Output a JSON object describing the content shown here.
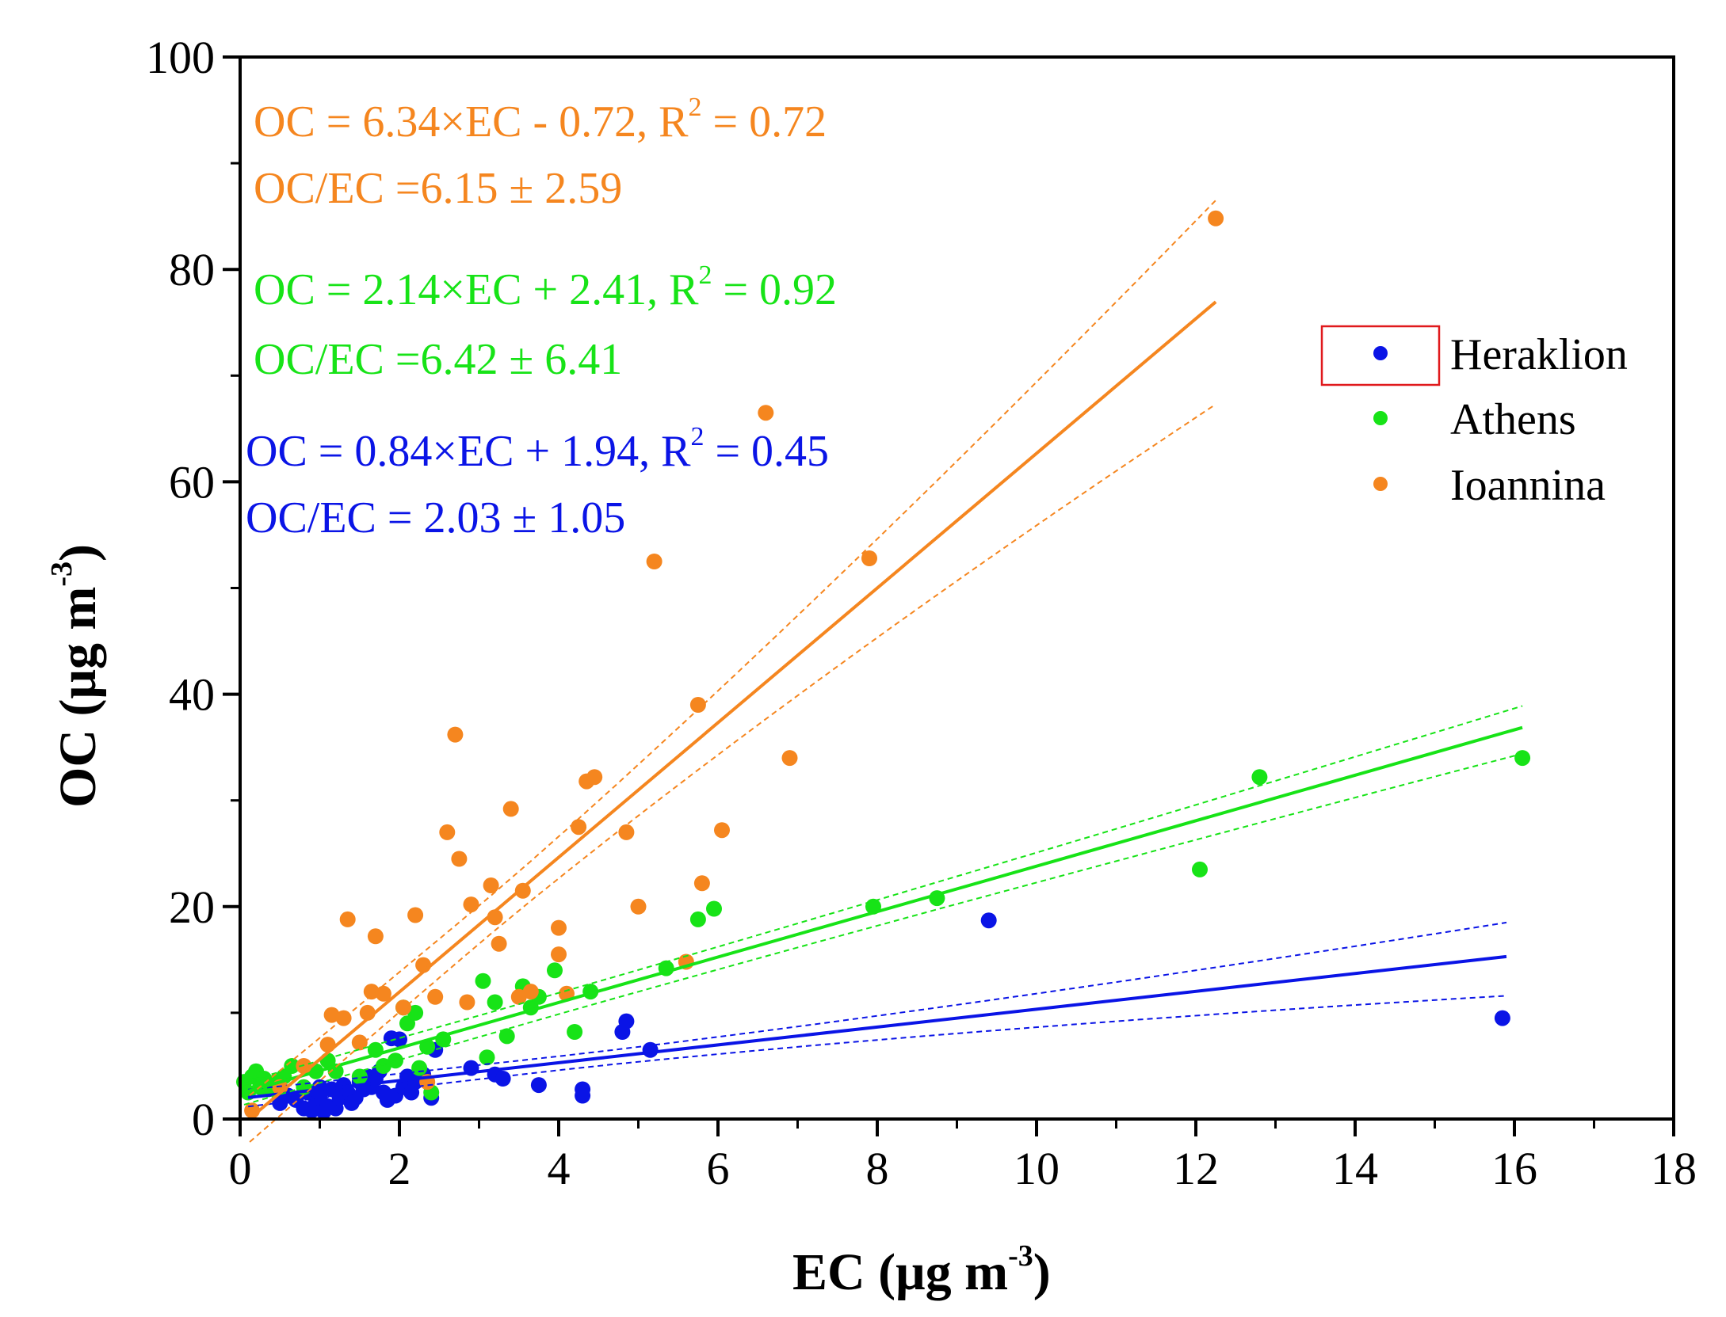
{
  "colors": {
    "Heraklion": "#0a14e6",
    "Athens": "#17e317",
    "Ioannina": "#f5861f",
    "axis": "#000000",
    "legend_box": "#e0191c"
  },
  "chart_data": {
    "type": "scatter",
    "title": "",
    "xlabel": "EC (μg m",
    "xlabel_sup": "-3",
    "xlabel_close": ")",
    "ylabel": "OC (μg m",
    "ylabel_sup": "-3",
    "ylabel_close": ")",
    "xlim": [
      0,
      18
    ],
    "ylim": [
      0,
      100
    ],
    "x_ticks": [
      0,
      2,
      4,
      6,
      8,
      10,
      12,
      14,
      16,
      18
    ],
    "y_ticks": [
      0,
      20,
      40,
      60,
      80,
      100
    ],
    "x_tick_labels": [
      "0",
      "2",
      "4",
      "6",
      "8",
      "10",
      "12",
      "14",
      "16",
      "18"
    ],
    "y_tick_labels": [
      "0",
      "20",
      "40",
      "60",
      "80",
      "100"
    ],
    "legend_position": "right",
    "series": [
      {
        "name": "Heraklion",
        "color": "#0a14e6",
        "fit": {
          "slope": 0.84,
          "intercept": 1.94,
          "x_range": [
            0.1,
            15.9
          ],
          "ci_upper_end": 18.5,
          "ci_lower_end": 11.6,
          "ci_at_start": 0.7
        },
        "annotation": {
          "line1": "OC = 0.84×EC + 1.94, R",
          "line1_sup": "2",
          "line1_end": " = 0.45",
          "line2": "OC/EC = 2.03 ± 1.05"
        },
        "points": [
          [
            0.5,
            1.5
          ],
          [
            0.6,
            2.2
          ],
          [
            0.7,
            1.8
          ],
          [
            0.8,
            1.0
          ],
          [
            0.85,
            2.5
          ],
          [
            0.9,
            0.8
          ],
          [
            0.95,
            1.5
          ],
          [
            1.0,
            3.0
          ],
          [
            1.0,
            2.0
          ],
          [
            1.05,
            0.7
          ],
          [
            1.1,
            1.2
          ],
          [
            1.15,
            2.8
          ],
          [
            1.2,
            1.0
          ],
          [
            1.25,
            2.0
          ],
          [
            1.3,
            3.2
          ],
          [
            1.35,
            2.5
          ],
          [
            1.4,
            1.5
          ],
          [
            1.45,
            2.0
          ],
          [
            1.5,
            3.5
          ],
          [
            1.55,
            2.8
          ],
          [
            1.6,
            4.0
          ],
          [
            1.65,
            3.0
          ],
          [
            1.7,
            3.8
          ],
          [
            1.75,
            4.5
          ],
          [
            1.8,
            2.5
          ],
          [
            1.85,
            1.8
          ],
          [
            1.9,
            7.6
          ],
          [
            1.95,
            2.2
          ],
          [
            2.0,
            7.5
          ],
          [
            2.05,
            3.0
          ],
          [
            2.1,
            4.0
          ],
          [
            2.15,
            2.5
          ],
          [
            2.2,
            3.5
          ],
          [
            2.3,
            4.2
          ],
          [
            2.4,
            2.0
          ],
          [
            2.45,
            6.5
          ],
          [
            2.9,
            4.8
          ],
          [
            3.2,
            4.2
          ],
          [
            3.3,
            3.8
          ],
          [
            3.75,
            3.2
          ],
          [
            4.3,
            2.8
          ],
          [
            4.3,
            2.2
          ],
          [
            4.8,
            8.2
          ],
          [
            4.85,
            9.2
          ],
          [
            5.15,
            6.5
          ],
          [
            9.4,
            18.7
          ],
          [
            15.85,
            9.5
          ]
        ]
      },
      {
        "name": "Athens",
        "color": "#17e317",
        "fit": {
          "slope": 2.14,
          "intercept": 2.41,
          "x_range": [
            0.05,
            16.1
          ],
          "ci_upper_end": 38.9,
          "ci_lower_end": 34.4,
          "ci_at_start": 1.1
        },
        "annotation": {
          "line1": "OC = 2.14×EC + 2.41, R",
          "line1_sup": "2",
          "line1_end": " = 0.92",
          "line2": "OC/EC =6.42 ± 6.41"
        },
        "points": [
          [
            0.05,
            3.5
          ],
          [
            0.1,
            2.5
          ],
          [
            0.15,
            4.0
          ],
          [
            0.2,
            4.5
          ],
          [
            0.25,
            3.0
          ],
          [
            0.3,
            3.8
          ],
          [
            0.35,
            2.8
          ],
          [
            0.45,
            3.5
          ],
          [
            0.55,
            4.0
          ],
          [
            0.65,
            5.0
          ],
          [
            0.8,
            3.0
          ],
          [
            0.95,
            4.5
          ],
          [
            1.1,
            5.5
          ],
          [
            1.2,
            4.5
          ],
          [
            1.5,
            4.0
          ],
          [
            1.7,
            6.5
          ],
          [
            1.8,
            5.0
          ],
          [
            1.95,
            5.5
          ],
          [
            2.05,
            10.5
          ],
          [
            2.1,
            9.0
          ],
          [
            2.2,
            10.0
          ],
          [
            2.25,
            4.8
          ],
          [
            2.35,
            6.8
          ],
          [
            2.4,
            2.5
          ],
          [
            2.55,
            7.5
          ],
          [
            3.05,
            13.0
          ],
          [
            3.1,
            5.8
          ],
          [
            3.2,
            11.0
          ],
          [
            3.35,
            7.8
          ],
          [
            3.55,
            12.5
          ],
          [
            3.65,
            10.5
          ],
          [
            3.75,
            11.5
          ],
          [
            3.95,
            14.0
          ],
          [
            4.2,
            8.2
          ],
          [
            4.4,
            12.0
          ],
          [
            5.35,
            14.2
          ],
          [
            5.75,
            18.8
          ],
          [
            5.95,
            19.8
          ],
          [
            7.95,
            20.0
          ],
          [
            8.75,
            20.8
          ],
          [
            12.05,
            23.5
          ],
          [
            12.8,
            32.2
          ],
          [
            16.1,
            34.0
          ]
        ]
      },
      {
        "name": "Ioannina",
        "color": "#f5861f",
        "fit": {
          "slope": 6.34,
          "intercept": -0.72,
          "x_range": [
            0.12,
            12.25
          ],
          "ci_upper_end": 86.5,
          "ci_lower_end": 67.3,
          "ci_at_start": 1.8
        },
        "annotation": {
          "line1": "OC = 6.34×EC - 0.72, R",
          "line1_sup": "2",
          "line1_end": " = 0.72",
          "line2": "OC/EC =6.15 ± 2.59"
        },
        "points": [
          [
            0.15,
            0.8
          ],
          [
            0.5,
            3.0
          ],
          [
            0.8,
            5.0
          ],
          [
            1.1,
            7.0
          ],
          [
            1.15,
            9.8
          ],
          [
            1.3,
            9.5
          ],
          [
            1.35,
            18.8
          ],
          [
            1.5,
            7.2
          ],
          [
            1.6,
            10.0
          ],
          [
            1.65,
            12.0
          ],
          [
            1.7,
            17.2
          ],
          [
            1.8,
            11.8
          ],
          [
            2.05,
            10.5
          ],
          [
            2.2,
            19.2
          ],
          [
            2.3,
            14.5
          ],
          [
            2.35,
            3.5
          ],
          [
            2.45,
            11.5
          ],
          [
            2.6,
            27.0
          ],
          [
            2.7,
            36.2
          ],
          [
            2.75,
            24.5
          ],
          [
            2.85,
            11.0
          ],
          [
            2.9,
            20.2
          ],
          [
            3.15,
            22.0
          ],
          [
            3.2,
            19.0
          ],
          [
            3.25,
            16.5
          ],
          [
            3.4,
            29.2
          ],
          [
            3.5,
            11.5
          ],
          [
            3.55,
            21.5
          ],
          [
            3.65,
            12.0
          ],
          [
            4.0,
            15.5
          ],
          [
            4.0,
            18.0
          ],
          [
            4.1,
            11.8
          ],
          [
            4.25,
            27.5
          ],
          [
            4.35,
            31.8
          ],
          [
            4.45,
            32.2
          ],
          [
            4.85,
            27.0
          ],
          [
            5.0,
            20.0
          ],
          [
            5.2,
            52.5
          ],
          [
            5.6,
            14.8
          ],
          [
            5.75,
            39.0
          ],
          [
            5.8,
            22.2
          ],
          [
            6.05,
            27.2
          ],
          [
            6.6,
            66.5
          ],
          [
            6.9,
            34.0
          ],
          [
            7.9,
            52.8
          ],
          [
            12.25,
            84.8
          ]
        ]
      }
    ]
  }
}
